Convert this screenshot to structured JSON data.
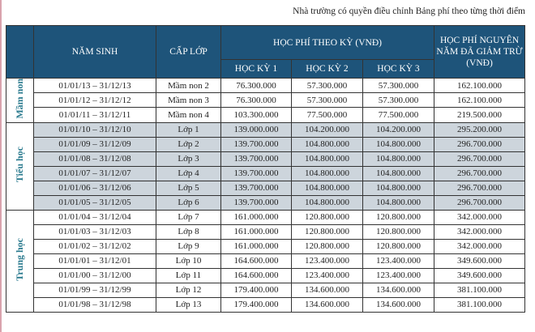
{
  "note": "Nhà trường có quyền điều chỉnh Bảng phí theo từng thời điểm",
  "headers": {
    "birth": "NĂM SINH",
    "level": "CẤP LỚP",
    "term_fee": "HỌC PHÍ THEO KỲ (VNĐ)",
    "term1": "HỌC KỲ 1",
    "term2": "HỌC KỲ 2",
    "term3": "HỌC KỲ 3",
    "annual": "HỌC PHÍ NGUYÊN NĂM ĐÃ GIẢM TRỪ (VNĐ)"
  },
  "colors": {
    "header": "#1e547a",
    "shaded_row": "#cdd5dc",
    "group_label": "#2a7a8e"
  },
  "groups": [
    {
      "name": "Mầm non",
      "shaded": false,
      "rows": [
        [
          "01/01/13 – 31/12/13",
          "Mầm non 2",
          "76.300.000",
          "57.300.000",
          "57.300.000",
          "162.100.000"
        ],
        [
          "01/01/12 – 31/12/12",
          "Mầm non 3",
          "76.300.000",
          "57.300.000",
          "57.300.000",
          "162.100.000"
        ],
        [
          "01/01/11 – 31/12/11",
          "Mầm non 4",
          "103.300.000",
          "77.500.000",
          "77.500.000",
          "219.500.000"
        ]
      ]
    },
    {
      "name": "Tiểu học",
      "shaded": true,
      "rows": [
        [
          "01/01/10 – 31/12/10",
          "Lớp 1",
          "139.000.000",
          "104.200.000",
          "104.200.000",
          "295.200.000"
        ],
        [
          "01/01/09 – 31/12/09",
          "Lớp 2",
          "139.700.000",
          "104.800.000",
          "104.800.000",
          "296.700.000"
        ],
        [
          "01/01/08 – 31/12/08",
          "Lớp 3",
          "139.700.000",
          "104.800.000",
          "104.800.000",
          "296.700.000"
        ],
        [
          "01/01/07 – 31/12/07",
          "Lớp 4",
          "139.700.000",
          "104.800.000",
          "104.800.000",
          "296.700.000"
        ],
        [
          "01/01/06 – 31/12/06",
          "Lớp 5",
          "139.700.000",
          "104.800.000",
          "104.800.000",
          "296.700.000"
        ],
        [
          "01/01/05 – 31/12/05",
          "Lớp 6",
          "139.700.000",
          "104.800.000",
          "104.800.000",
          "296.700.000"
        ]
      ]
    },
    {
      "name": "Trung học",
      "shaded": false,
      "rows": [
        [
          "01/01/04 – 31/12/04",
          "Lớp 7",
          "161.000.000",
          "120.800.000",
          "120.800.000",
          "342.000.000"
        ],
        [
          "01/01/03 – 31/12/03",
          "Lớp 8",
          "161.000.000",
          "120.800.000",
          "120.800.000",
          "342.000.000"
        ],
        [
          "01/01/02 – 31/12/02",
          "Lớp 9",
          "161.000.000",
          "120.800.000",
          "120.800.000",
          "342.000.000"
        ],
        [
          "01/01/01 – 31/12/01",
          "Lớp 10",
          "164.600.000",
          "123.400.000",
          "123.400.000",
          "349.600.000"
        ],
        [
          "01/01/00 – 31/12/00",
          "Lớp 11",
          "164.600.000",
          "123.400.000",
          "123.400.000",
          "349.600.000"
        ],
        [
          "01/01/99 – 31/12/99",
          "Lớp 12",
          "179.400.000",
          "134.600.000",
          "134.600.000",
          "381.100.000"
        ],
        [
          "01/01/98 – 31/12/98",
          "Lớp 13",
          "179.400.000",
          "134.600.000",
          "134.600.000",
          "381.100.000"
        ]
      ]
    }
  ]
}
